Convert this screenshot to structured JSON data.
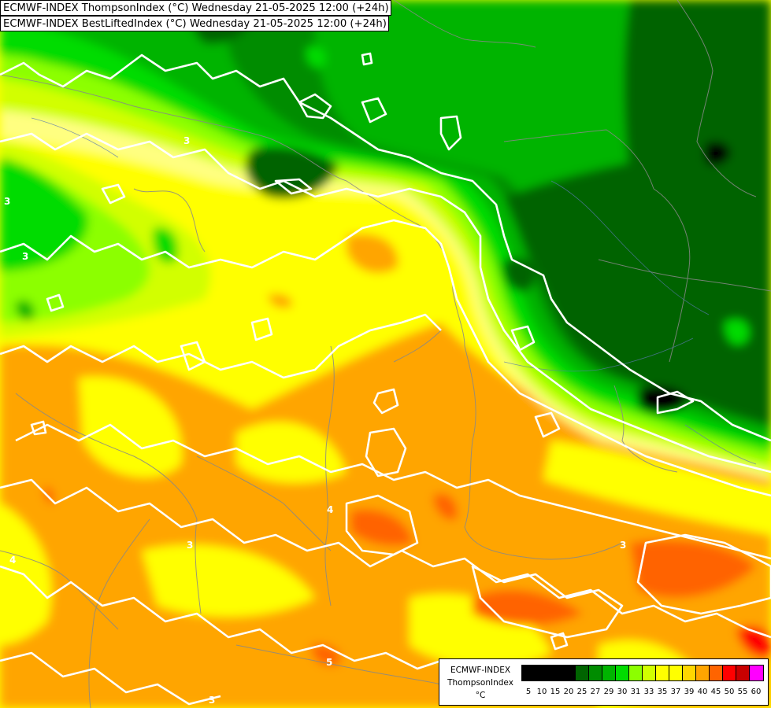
{
  "header": {
    "line1": "ECMWF-INDEX ThompsonIndex (°C) Wednesday 21-05-2025 12:00 (+24h)",
    "line2": "ECMWF-INDEX BestLiftedIndex (°C) Wednesday 21-05-2025 12:00 (+24h)"
  },
  "legend": {
    "model": "ECMWF-INDEX",
    "variable": "ThompsonIndex",
    "unit": "°C",
    "ticks": [
      "5",
      "10",
      "15",
      "20",
      "25",
      "27",
      "29",
      "30",
      "31",
      "33",
      "35",
      "37",
      "39",
      "40",
      "45",
      "50",
      "55",
      "60"
    ],
    "colors": [
      "#000000",
      "#000000",
      "#000000",
      "#000000",
      "#006400",
      "#008c00",
      "#00b400",
      "#00dc00",
      "#8cff00",
      "#d2ff00",
      "#ffff00",
      "#ffff00",
      "#ffd700",
      "#ffa500",
      "#ff6400",
      "#ff0000",
      "#c80000",
      "#ff00ff",
      "#b400ff",
      "#7800ff",
      "#3c00ff",
      "#0000ff"
    ]
  },
  "contour_labels": [
    "3",
    "3",
    "3",
    "3",
    "3",
    "4",
    "4",
    "5",
    "3"
  ]
}
